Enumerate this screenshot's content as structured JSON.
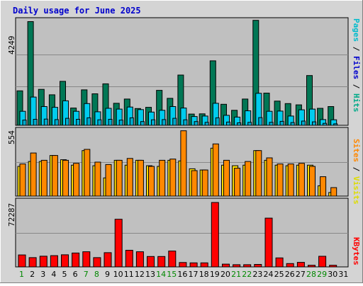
{
  "title": "Daily usage for June 2025",
  "colors": {
    "pages": "#007755",
    "files": "#00bbcc",
    "hits": "#00aa88",
    "sites": "#ff8800",
    "visits": "#ffff00",
    "kbytes": "#ff0000",
    "plot_bg": "#c0c0c0",
    "frame_bg": "#d4d4d4",
    "weekday": "#000000",
    "weekend": "#008800"
  },
  "chart_data": [
    {
      "type": "bar",
      "name": "hits-files-pages",
      "ymax_label": "4249",
      "legend": [
        "Pages",
        "Files",
        "Hits"
      ],
      "categories": [
        "1",
        "2",
        "3",
        "4",
        "5",
        "6",
        "7",
        "8",
        "9",
        "10",
        "11",
        "12",
        "13",
        "14",
        "15",
        "16",
        "17",
        "18",
        "19",
        "20",
        "21",
        "22",
        "23",
        "24",
        "25",
        "26",
        "27",
        "28",
        "29",
        "30",
        "31"
      ],
      "ylim": [
        0,
        4249
      ],
      "series": [
        {
          "name": "Hits",
          "values": [
            1380,
            4150,
            1440,
            1220,
            1760,
            690,
            1420,
            1260,
            1660,
            880,
            1050,
            670,
            720,
            1400,
            1080,
            2010,
            450,
            460,
            2580,
            840,
            600,
            1050,
            4200,
            1290,
            970,
            870,
            820,
            1990,
            680,
            750,
            0
          ]
        },
        {
          "name": "Files",
          "values": [
            560,
            1130,
            750,
            720,
            980,
            560,
            870,
            540,
            680,
            650,
            730,
            630,
            530,
            600,
            750,
            690,
            350,
            370,
            880,
            400,
            330,
            580,
            1280,
            560,
            570,
            370,
            620,
            650,
            230,
            220,
            0
          ]
        },
        {
          "name": "Pages",
          "values": [
            210,
            240,
            250,
            230,
            280,
            240,
            300,
            220,
            240,
            210,
            300,
            150,
            220,
            230,
            280,
            220,
            150,
            120,
            300,
            130,
            100,
            120,
            310,
            120,
            160,
            110,
            170,
            140,
            80,
            60,
            0
          ]
        }
      ]
    },
    {
      "type": "bar",
      "name": "sites-visits",
      "ymax_label": "554",
      "legend": [
        "Sites",
        "Visits"
      ],
      "categories": [
        "1",
        "2",
        "3",
        "4",
        "5",
        "6",
        "7",
        "8",
        "9",
        "10",
        "11",
        "12",
        "13",
        "14",
        "15",
        "16",
        "17",
        "18",
        "19",
        "20",
        "21",
        "22",
        "23",
        "24",
        "25",
        "26",
        "27",
        "28",
        "29",
        "30",
        "31"
      ],
      "ylim": [
        0,
        554
      ],
      "series": [
        {
          "name": "Visits",
          "values": [
            245,
            285,
            285,
            335,
            300,
            255,
            375,
            250,
            150,
            295,
            255,
            295,
            250,
            245,
            295,
            290,
            225,
            215,
            395,
            255,
            250,
            255,
            375,
            295,
            255,
            250,
            255,
            255,
            85,
            30,
            0
          ]
        },
        {
          "name": "Sites",
          "values": [
            265,
            355,
            295,
            335,
            295,
            270,
            385,
            280,
            260,
            295,
            310,
            295,
            245,
            295,
            305,
            538,
            210,
            215,
            430,
            295,
            230,
            285,
            375,
            315,
            265,
            265,
            270,
            245,
            160,
            70,
            0
          ]
        }
      ]
    },
    {
      "type": "bar",
      "name": "kbytes",
      "ymax_label": "72287",
      "legend": [
        "KBytes"
      ],
      "categories": [
        "1",
        "2",
        "3",
        "4",
        "5",
        "6",
        "7",
        "8",
        "9",
        "10",
        "11",
        "12",
        "13",
        "14",
        "15",
        "16",
        "17",
        "18",
        "19",
        "20",
        "21",
        "22",
        "23",
        "24",
        "25",
        "26",
        "27",
        "28",
        "29",
        "30",
        "31"
      ],
      "ylim": [
        0,
        72287
      ],
      "series": [
        {
          "name": "KBytes",
          "values": [
            13400,
            10400,
            12000,
            12600,
            13600,
            15600,
            17000,
            10400,
            16000,
            53500,
            18700,
            17000,
            11700,
            11700,
            17800,
            4900,
            4500,
            4500,
            72287,
            3100,
            2500,
            2500,
            2800,
            54700,
            10100,
            3700,
            5100,
            1800,
            11900,
            1800,
            0
          ]
        }
      ]
    }
  ],
  "weekend_days": [
    1,
    7,
    8,
    14,
    15,
    21,
    22,
    28,
    29
  ]
}
